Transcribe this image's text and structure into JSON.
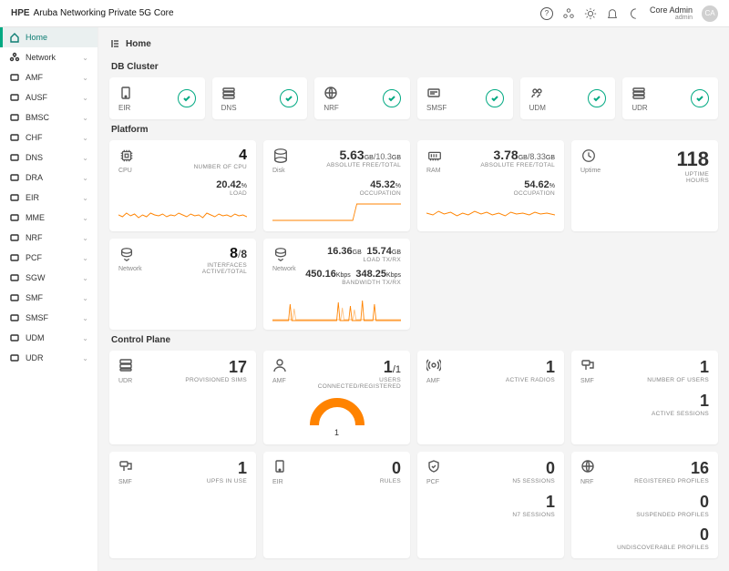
{
  "topbar": {
    "brand": "HPE",
    "product": "Aruba Networking Private 5G Core",
    "user_name": "Core Admin",
    "user_role": "admin",
    "avatar_initials": "CA"
  },
  "sidebar": {
    "items": [
      {
        "label": "Home",
        "active": true,
        "expandable": false
      },
      {
        "label": "Network",
        "active": false,
        "expandable": true
      },
      {
        "label": "AMF",
        "active": false,
        "expandable": true
      },
      {
        "label": "AUSF",
        "active": false,
        "expandable": true
      },
      {
        "label": "BMSC",
        "active": false,
        "expandable": true
      },
      {
        "label": "CHF",
        "active": false,
        "expandable": true
      },
      {
        "label": "DNS",
        "active": false,
        "expandable": true
      },
      {
        "label": "DRA",
        "active": false,
        "expandable": true
      },
      {
        "label": "EIR",
        "active": false,
        "expandable": true
      },
      {
        "label": "MME",
        "active": false,
        "expandable": true
      },
      {
        "label": "NRF",
        "active": false,
        "expandable": true
      },
      {
        "label": "PCF",
        "active": false,
        "expandable": true
      },
      {
        "label": "SGW",
        "active": false,
        "expandable": true
      },
      {
        "label": "SMF",
        "active": false,
        "expandable": true
      },
      {
        "label": "SMSF",
        "active": false,
        "expandable": true
      },
      {
        "label": "UDM",
        "active": false,
        "expandable": true
      },
      {
        "label": "UDR",
        "active": false,
        "expandable": true
      }
    ]
  },
  "breadcrumb": {
    "title": "Home"
  },
  "sections": {
    "db_cluster_title": "DB Cluster",
    "platform_title": "Platform",
    "control_plane_title": "Control Plane"
  },
  "db_cluster": [
    {
      "label": "EIR"
    },
    {
      "label": "DNS"
    },
    {
      "label": "NRF"
    },
    {
      "label": "SMSF"
    },
    {
      "label": "UDM"
    },
    {
      "label": "UDR"
    }
  ],
  "platform": {
    "cpu": {
      "label": "CPU",
      "count": "4",
      "count_desc": "NUMBER OF CPU",
      "load": "20.42",
      "load_unit": "%",
      "load_desc": "LOAD"
    },
    "disk": {
      "label": "Disk",
      "free": "5.63",
      "free_unit": "GB",
      "total": "10.3",
      "total_unit": "GB",
      "desc": "ABSOLUTE FREE/TOTAL",
      "occ": "45.32",
      "occ_unit": "%",
      "occ_desc": "OCCUPATION"
    },
    "ram": {
      "label": "RAM",
      "free": "3.78",
      "free_unit": "GB",
      "total": "8.33",
      "total_unit": "GB",
      "desc": "ABSOLUTE FREE/TOTAL",
      "occ": "54.62",
      "occ_unit": "%",
      "occ_desc": "OCCUPATION"
    },
    "uptime": {
      "label": "Uptime",
      "value": "118",
      "desc": "UPTIME",
      "unit": "HOURS"
    },
    "interfaces": {
      "label": "Network",
      "active": "8",
      "total": "8",
      "desc": "INTERFACES",
      "sub": "ACTIVE/TOTAL"
    },
    "network": {
      "label": "Network",
      "tx": "16.36",
      "tx_unit": "GB",
      "rx": "15.74",
      "rx_unit": "GB",
      "load_desc": "LOAD TX/RX",
      "bw_tx": "450.16",
      "bw_tx_unit": "Kbps",
      "bw_rx": "348.25",
      "bw_rx_unit": "Kbps",
      "bw_desc": "BANDWIDTH TX/RX"
    }
  },
  "control_plane": {
    "udr": {
      "label": "UDR",
      "value": "17",
      "desc": "PROVISIONED SIMS"
    },
    "amf_users": {
      "label": "AMF",
      "connected": "1",
      "registered": "1",
      "desc": "USERS",
      "sub": "CONNECTED/REGISTERED",
      "gauge_value": "1"
    },
    "amf_radios": {
      "label": "AMF",
      "value": "1",
      "desc": "ACTIVE RADIOS"
    },
    "smf1": {
      "label": "SMF",
      "users": "1",
      "users_desc": "NUMBER OF USERS",
      "sessions": "1",
      "sessions_desc": "ACTIVE SESSIONS"
    },
    "smf2": {
      "label": "SMF",
      "value": "1",
      "desc": "UPFS IN USE"
    },
    "eir": {
      "label": "EIR",
      "value": "0",
      "desc": "RULES"
    },
    "pcf": {
      "label": "PCF",
      "n5": "0",
      "n5_desc": "N5 SESSIONS",
      "n7": "1",
      "n7_desc": "N7 SESSIONS"
    },
    "nrf": {
      "label": "NRF",
      "reg": "16",
      "reg_desc": "REGISTERED PROFILES",
      "sus": "0",
      "sus_desc": "SUSPENDED PROFILES",
      "und": "0",
      "und_desc": "UNDISCOVERABLE PROFILES"
    }
  },
  "colors": {
    "accent": "#01a982",
    "spark": "#ff8300",
    "bg": "#f4f4f4",
    "card": "#ffffff"
  }
}
